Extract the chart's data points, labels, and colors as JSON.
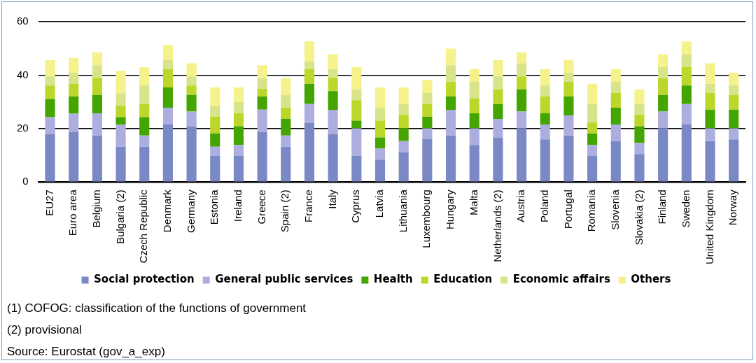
{
  "chart_data": {
    "type": "bar",
    "stacked": true,
    "categories": [
      "EU27",
      "Euro area",
      "Belgium",
      "Bulgaria (2)",
      "Czech Republic",
      "Denmark",
      "Germany",
      "Estonia",
      "Ireland",
      "Greece",
      "Spain (2)",
      "France",
      "Italy",
      "Cyprus",
      "Latvia",
      "Lithuania",
      "Luxembourg",
      "Hungary",
      "Malta",
      "Netherlands (2)",
      "Austria",
      "Poland",
      "Portugal",
      "Romania",
      "Slovenia",
      "Slovakia (2)",
      "Finland",
      "Sweden",
      "United Kingdom",
      "Norway"
    ],
    "series": [
      {
        "name": "Social protection",
        "color": "#7b88c6",
        "values": [
          18.0,
          18.7,
          17.4,
          13.2,
          13.2,
          21.5,
          20.8,
          9.8,
          9.8,
          18.7,
          13.2,
          22.2,
          18.0,
          9.8,
          8.4,
          11.1,
          16.1,
          17.4,
          13.9,
          16.7,
          20.1,
          16.0,
          17.4,
          9.8,
          15.3,
          10.5,
          20.1,
          21.5,
          15.3,
          16.0
        ]
      },
      {
        "name": "General public services",
        "color": "#adaee0",
        "values": [
          6.3,
          6.9,
          8.3,
          8.2,
          4.2,
          6.3,
          5.6,
          3.4,
          4.1,
          8.4,
          4.2,
          7.0,
          9.0,
          10.3,
          4.1,
          4.2,
          4.0,
          9.6,
          6.2,
          6.9,
          6.3,
          5.5,
          7.5,
          4.1,
          6.2,
          4.1,
          6.3,
          7.7,
          4.8,
          4.1
        ]
      },
      {
        "name": "Health",
        "color": "#44a500",
        "values": [
          6.8,
          6.4,
          6.9,
          2.9,
          6.9,
          7.6,
          6.2,
          5.0,
          7.0,
          4.9,
          6.3,
          7.6,
          7.0,
          2.9,
          4.2,
          4.8,
          4.3,
          5.0,
          5.6,
          5.6,
          8.3,
          4.2,
          7.1,
          4.3,
          6.3,
          6.3,
          6.2,
          6.9,
          7.0,
          7.0
        ]
      },
      {
        "name": "Education",
        "color": "#bdd62a",
        "values": [
          5.0,
          4.7,
          6.4,
          4.2,
          4.9,
          6.9,
          3.5,
          6.2,
          4.8,
          2.9,
          4.1,
          5.5,
          5.0,
          7.6,
          6.3,
          5.0,
          4.8,
          5.5,
          5.6,
          5.5,
          4.8,
          6.3,
          5.5,
          4.1,
          5.5,
          4.2,
          6.3,
          6.9,
          6.2,
          5.5
        ]
      },
      {
        "name": "Economic affairs",
        "color": "#d8e38a",
        "values": [
          3.4,
          4.2,
          4.7,
          4.7,
          6.9,
          3.4,
          3.4,
          4.1,
          4.2,
          4.0,
          4.8,
          2.9,
          3.3,
          4.1,
          4.8,
          4.1,
          4.1,
          6.2,
          6.2,
          4.8,
          4.9,
          4.1,
          3.4,
          6.9,
          4.2,
          4.1,
          4.1,
          4.8,
          3.5,
          3.5
        ]
      },
      {
        "name": "Others",
        "color": "#f5f18b",
        "values": [
          6.1,
          5.5,
          4.8,
          8.4,
          6.8,
          5.6,
          4.9,
          6.9,
          5.5,
          4.8,
          6.3,
          7.4,
          5.5,
          8.3,
          7.6,
          6.2,
          4.9,
          6.2,
          4.8,
          6.2,
          4.1,
          6.2,
          4.8,
          7.6,
          4.8,
          5.5,
          4.8,
          4.8,
          7.6,
          4.8
        ]
      }
    ],
    "ylim": [
      0,
      60
    ],
    "yticks": [
      0,
      20,
      40,
      60
    ],
    "grid": "y",
    "legend": "bottom",
    "annotations": [
      "(1) COFOG: classification of the functions of government",
      "(2) provisional",
      "Source: Eurostat (gov_a_exp)"
    ]
  }
}
